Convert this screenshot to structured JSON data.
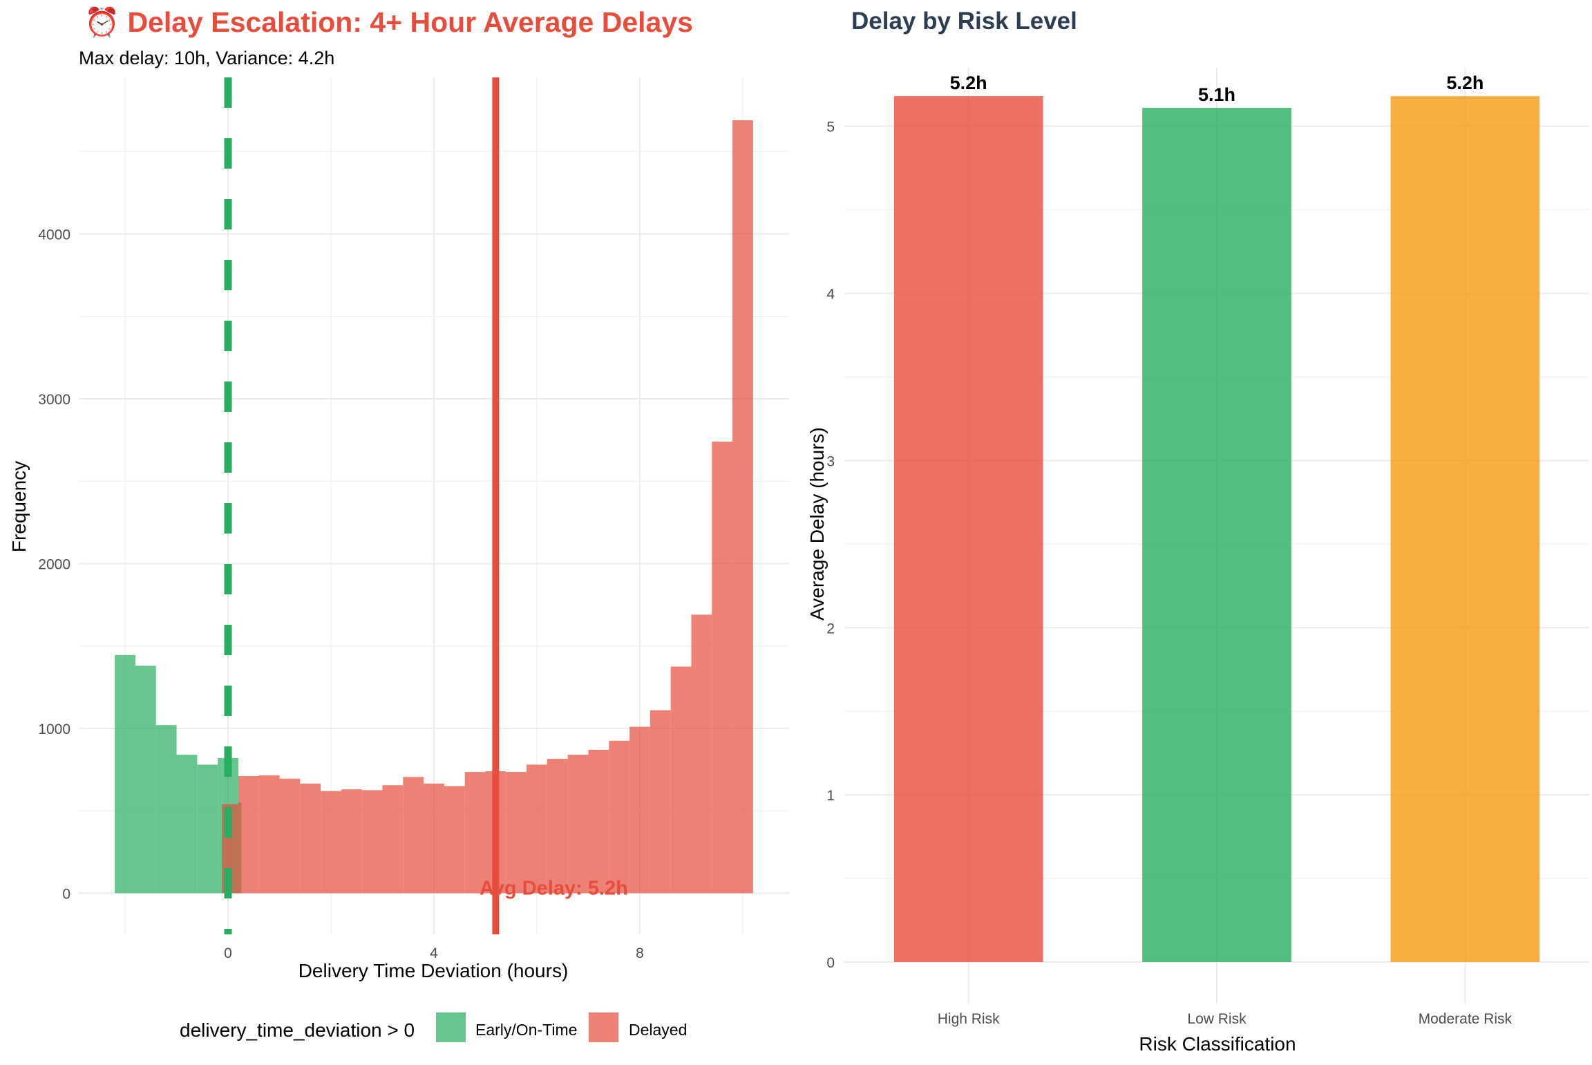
{
  "colors": {
    "red": "#e74c3c",
    "green": "#27ae60",
    "orange": "#f39c12",
    "title_red": "#e74c3c",
    "title_dark": "#2c3e50",
    "grid": "#ebebeb",
    "axis_text": "#4d4d4d"
  },
  "chart_data": [
    {
      "type": "bar",
      "subtype": "histogram",
      "title_icon": "alarm-clock-icon",
      "title": "⏰ Delay Escalation: 4+ Hour Average Delays",
      "subtitle": "Max delay: 10h, Variance: 4.2h",
      "xlabel": "Delivery Time Deviation (hours)",
      "ylabel": "Frequency",
      "xlim": [
        -2.9,
        10.9
      ],
      "ylim": [
        -250,
        4950
      ],
      "x_ticks": [
        0,
        4,
        8
      ],
      "y_ticks": [
        0,
        1000,
        2000,
        3000,
        4000
      ],
      "grid": true,
      "legend_position": "bottom",
      "legend_title": "delivery_time_deviation > 0",
      "series": [
        {
          "name": "Early/On-Time",
          "color": "#27ae60",
          "bins": [
            {
              "x0": -2.2,
              "x1": -1.8,
              "value": 1445
            },
            {
              "x0": -1.8,
              "x1": -1.4,
              "value": 1380
            },
            {
              "x0": -1.4,
              "x1": -1.0,
              "value": 1020
            },
            {
              "x0": -1.0,
              "x1": -0.6,
              "value": 840
            },
            {
              "x0": -0.6,
              "x1": -0.2,
              "value": 780
            },
            {
              "x0": -0.2,
              "x1": -0.12,
              "value": 820
            },
            {
              "x0": -0.12,
              "x1": 0.2,
              "value": 820
            },
            {
              "x0": 0.2,
              "x1": 0.26,
              "value": 550
            }
          ]
        },
        {
          "name": "Delayed",
          "color": "#e74c3c",
          "bins": [
            {
              "x0": -0.12,
              "x1": 0.2,
              "value": 540
            },
            {
              "x0": 0.2,
              "x1": 0.6,
              "value": 710
            },
            {
              "x0": 0.6,
              "x1": 1.0,
              "value": 715
            },
            {
              "x0": 1.0,
              "x1": 1.4,
              "value": 695
            },
            {
              "x0": 1.4,
              "x1": 1.8,
              "value": 665
            },
            {
              "x0": 1.8,
              "x1": 2.2,
              "value": 620
            },
            {
              "x0": 2.2,
              "x1": 2.6,
              "value": 630
            },
            {
              "x0": 2.6,
              "x1": 3.0,
              "value": 625
            },
            {
              "x0": 3.0,
              "x1": 3.4,
              "value": 655
            },
            {
              "x0": 3.4,
              "x1": 3.8,
              "value": 705
            },
            {
              "x0": 3.8,
              "x1": 4.2,
              "value": 665
            },
            {
              "x0": 4.2,
              "x1": 4.6,
              "value": 650
            },
            {
              "x0": 4.6,
              "x1": 5.0,
              "value": 735
            },
            {
              "x0": 5.0,
              "x1": 5.4,
              "value": 740
            },
            {
              "x0": 5.4,
              "x1": 5.8,
              "value": 735
            },
            {
              "x0": 5.8,
              "x1": 6.2,
              "value": 780
            },
            {
              "x0": 6.2,
              "x1": 6.6,
              "value": 815
            },
            {
              "x0": 6.6,
              "x1": 7.0,
              "value": 840
            },
            {
              "x0": 7.0,
              "x1": 7.4,
              "value": 870
            },
            {
              "x0": 7.4,
              "x1": 7.8,
              "value": 925
            },
            {
              "x0": 7.8,
              "x1": 8.2,
              "value": 1010
            },
            {
              "x0": 8.2,
              "x1": 8.6,
              "value": 1110
            },
            {
              "x0": 8.6,
              "x1": 9.0,
              "value": 1375
            },
            {
              "x0": 9.0,
              "x1": 9.4,
              "value": 1690
            },
            {
              "x0": 9.4,
              "x1": 9.8,
              "value": 2740
            },
            {
              "x0": 9.8,
              "x1": 10.2,
              "value": 4690
            }
          ]
        }
      ],
      "reference_lines": [
        {
          "x": 0,
          "color": "#27ae60",
          "style": "dashed"
        },
        {
          "x": 5.2,
          "color": "#e74c3c",
          "style": "solid"
        }
      ],
      "annotation": {
        "text": "Avg Delay: 5.2h",
        "x": 5.2,
        "y": 0
      }
    },
    {
      "type": "bar",
      "title": "Delay by Risk Level",
      "xlabel": "Risk Classification",
      "ylabel": "Average Delay (hours)",
      "categories": [
        "High Risk",
        "Low Risk",
        "Moderate Risk"
      ],
      "values": [
        5.18,
        5.11,
        5.18
      ],
      "value_labels": [
        "5.2h",
        "5.1h",
        "5.2h"
      ],
      "colors": [
        "#e74c3c",
        "#27ae60",
        "#f39c12"
      ],
      "ylim": [
        0,
        5.35
      ],
      "y_ticks": [
        0,
        1,
        2,
        3,
        4,
        5
      ],
      "grid": true
    }
  ],
  "legend": {
    "title": "delivery_time_deviation > 0",
    "items": [
      {
        "label": "Early/On-Time",
        "color": "#27ae60"
      },
      {
        "label": "Delayed",
        "color": "#e74c3c"
      }
    ]
  }
}
